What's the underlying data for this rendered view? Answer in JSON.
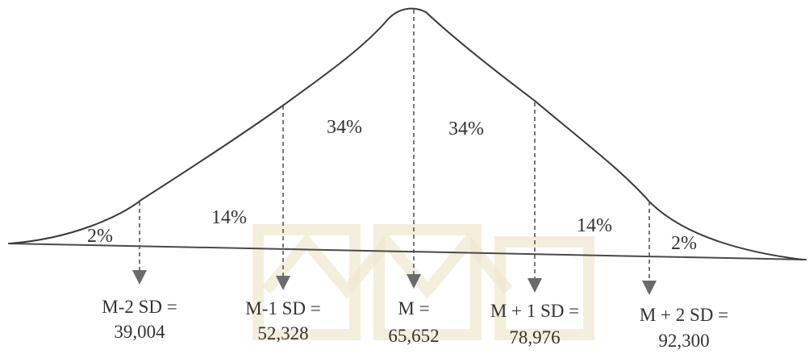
{
  "regions": [
    {
      "id": "far-left",
      "label": "2%"
    },
    {
      "id": "left",
      "label": "14%"
    },
    {
      "id": "center-left",
      "label": "34%"
    },
    {
      "id": "center-right",
      "label": "34%"
    },
    {
      "id": "right",
      "label": "14%"
    },
    {
      "id": "far-right",
      "label": "2%"
    }
  ],
  "markers": [
    {
      "id": "m-minus-2sd",
      "line1": "M-2 SD =",
      "line2": "39,004"
    },
    {
      "id": "m-minus-1sd",
      "line1": "M-1 SD =",
      "line2": "52,328"
    },
    {
      "id": "mean",
      "line1": "M =",
      "line2": "65,652"
    },
    {
      "id": "m-plus-1sd",
      "line1": "M + 1 SD =",
      "line2": "78,976"
    },
    {
      "id": "m-plus-2sd",
      "line1": "M + 2 SD =",
      "line2": "92,300"
    }
  ],
  "colors": {
    "line": "#3a3a3a",
    "arrow": "#6b6b6b",
    "text": "#333333"
  }
}
